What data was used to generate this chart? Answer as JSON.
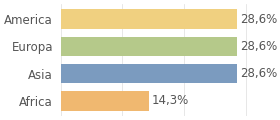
{
  "categories": [
    "America",
    "Europa",
    "Asia",
    "Africa"
  ],
  "values": [
    28.6,
    28.6,
    28.6,
    14.3
  ],
  "bar_colors": [
    "#f0d080",
    "#b5c98a",
    "#7b9bbf",
    "#f0b870"
  ],
  "labels": [
    "28,6%",
    "28,6%",
    "28,6%",
    "14,3%"
  ],
  "xlim": [
    0,
    33.5
  ],
  "background_color": "#ffffff",
  "bar_height": 0.72,
  "label_fontsize": 8.5,
  "tick_fontsize": 8.5
}
